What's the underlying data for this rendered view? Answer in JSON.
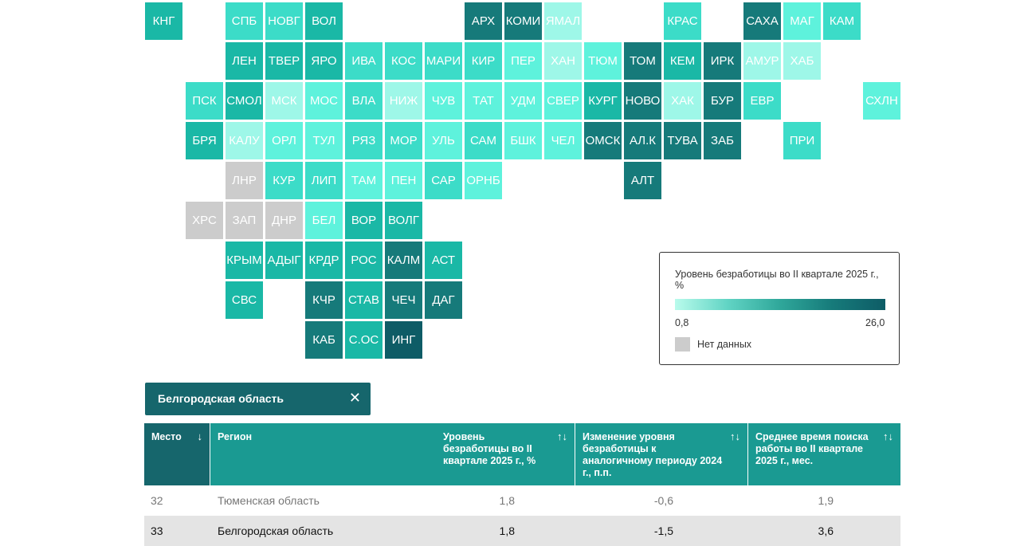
{
  "colors": {
    "teal_darkest": "#0e5c66",
    "teal_dark": "#167a7a",
    "teal_mid": "#1ab8a6",
    "teal_light": "#3cdcc8",
    "teal_lighter": "#5ef2dc",
    "teal_lightest": "#9ef7e8",
    "no_data": "#cccccc",
    "header_first": "#16666c",
    "header_rest": "#1a9a92"
  },
  "map": {
    "tiles": [
      {
        "label": "КНГ",
        "color": "#1ab8a6"
      },
      {
        "label": "СПБ",
        "color": "#3cdcc8"
      },
      {
        "label": "НОВГ",
        "color": "#3cdcc8"
      },
      {
        "label": "ВОЛ",
        "color": "#1ab8a6"
      },
      {
        "label": "АРХ",
        "color": "#167a7a"
      },
      {
        "label": "КОМИ",
        "color": "#167a7a"
      },
      {
        "label": "ЯМАЛ",
        "color": "#9ef7e8"
      },
      {
        "label": "КРАС",
        "color": "#3cdcc8"
      },
      {
        "label": "САХА",
        "color": "#167a7a"
      },
      {
        "label": "МАГ",
        "color": "#5ef2dc"
      },
      {
        "label": "КАМ",
        "color": "#3cdcc8"
      },
      {
        "label": "ЛЕН",
        "color": "#1ab8a6"
      },
      {
        "label": "ТВЕР",
        "color": "#1ab8a6"
      },
      {
        "label": "ЯРО",
        "color": "#1ab8a6"
      },
      {
        "label": "ИВА",
        "color": "#3cdcc8"
      },
      {
        "label": "КОС",
        "color": "#3cdcc8"
      },
      {
        "label": "МАРИ",
        "color": "#3cdcc8"
      },
      {
        "label": "КИР",
        "color": "#3cdcc8"
      },
      {
        "label": "ПЕР",
        "color": "#5ef2dc"
      },
      {
        "label": "ХАН",
        "color": "#9ef7e8"
      },
      {
        "label": "ТЮМ",
        "color": "#5ef2dc"
      },
      {
        "label": "ТОМ",
        "color": "#167a7a"
      },
      {
        "label": "КЕМ",
        "color": "#1ab8a6"
      },
      {
        "label": "ИРК",
        "color": "#167a7a"
      },
      {
        "label": "АМУР",
        "color": "#9ef7e8"
      },
      {
        "label": "ХАБ",
        "color": "#9ef7e8"
      },
      {
        "label": "ПСК",
        "color": "#3cdcc8"
      },
      {
        "label": "СМОЛ",
        "color": "#1ab8a6"
      },
      {
        "label": "МСК",
        "color": "#9ef7e8"
      },
      {
        "label": "МОС",
        "color": "#5ef2dc"
      },
      {
        "label": "ВЛА",
        "color": "#3cdcc8"
      },
      {
        "label": "НИЖ",
        "color": "#9ef7e8"
      },
      {
        "label": "ЧУВ",
        "color": "#5ef2dc"
      },
      {
        "label": "ТАТ",
        "color": "#5ef2dc"
      },
      {
        "label": "УДМ",
        "color": "#5ef2dc"
      },
      {
        "label": "СВЕР",
        "color": "#5ef2dc"
      },
      {
        "label": "КУРГ",
        "color": "#1ab8a6"
      },
      {
        "label": "НОВО",
        "color": "#167a7a"
      },
      {
        "label": "ХАК",
        "color": "#9ef7e8"
      },
      {
        "label": "БУР",
        "color": "#167a7a"
      },
      {
        "label": "ЕВР",
        "color": "#3cdcc8"
      },
      {
        "label": "СХЛН",
        "color": "#5ef2dc"
      },
      {
        "label": "БРЯ",
        "color": "#1ab8a6"
      },
      {
        "label": "КАЛУ",
        "color": "#9ef7e8"
      },
      {
        "label": "ОРЛ",
        "color": "#5ef2dc"
      },
      {
        "label": "ТУЛ",
        "color": "#5ef2dc"
      },
      {
        "label": "РЯЗ",
        "color": "#3cdcc8"
      },
      {
        "label": "МОР",
        "color": "#3cdcc8"
      },
      {
        "label": "УЛЬ",
        "color": "#5ef2dc"
      },
      {
        "label": "САМ",
        "color": "#3cdcc8"
      },
      {
        "label": "БШК",
        "color": "#5ef2dc"
      },
      {
        "label": "ЧЕЛ",
        "color": "#5ef2dc"
      },
      {
        "label": "ОМСК",
        "color": "#167a7a"
      },
      {
        "label": "АЛ.К",
        "color": "#167a7a"
      },
      {
        "label": "ТУВА",
        "color": "#167a7a"
      },
      {
        "label": "ЗАБ",
        "color": "#167a7a"
      },
      {
        "label": "ПРИ",
        "color": "#3cdcc8"
      },
      {
        "label": "ЛНР",
        "color": "#cccccc"
      },
      {
        "label": "КУР",
        "color": "#3cdcc8"
      },
      {
        "label": "ЛИП",
        "color": "#3cdcc8"
      },
      {
        "label": "ТАМ",
        "color": "#5ef2dc"
      },
      {
        "label": "ПЕН",
        "color": "#5ef2dc"
      },
      {
        "label": "САР",
        "color": "#3cdcc8"
      },
      {
        "label": "ОРНБ",
        "color": "#5ef2dc"
      },
      {
        "label": "АЛТ",
        "color": "#167a7a"
      },
      {
        "label": "ХРС",
        "color": "#cccccc"
      },
      {
        "label": "ЗАП",
        "color": "#cccccc"
      },
      {
        "label": "ДНР",
        "color": "#cccccc"
      },
      {
        "label": "БЕЛ",
        "color": "#5ef2dc"
      },
      {
        "label": "ВОР",
        "color": "#1ab8a6"
      },
      {
        "label": "ВОЛГ",
        "color": "#1ab8a6"
      },
      {
        "label": "КРЫМ",
        "color": "#1ab8a6"
      },
      {
        "label": "АДЫГ",
        "color": "#1ab8a6"
      },
      {
        "label": "КРДР",
        "color": "#1ab8a6"
      },
      {
        "label": "РОС",
        "color": "#1ab8a6"
      },
      {
        "label": "КАЛМ",
        "color": "#167a7a"
      },
      {
        "label": "АСТ",
        "color": "#1ab8a6"
      },
      {
        "label": "СВС",
        "color": "#1ab8a6"
      },
      {
        "label": "КЧР",
        "color": "#167a7a"
      },
      {
        "label": "СТАВ",
        "color": "#1ab8a6"
      },
      {
        "label": "ЧЕЧ",
        "color": "#167a7a"
      },
      {
        "label": "ДАГ",
        "color": "#167a7a"
      },
      {
        "label": "КАБ",
        "color": "#167a7a"
      },
      {
        "label": "С.ОС",
        "color": "#1ab8a6"
      },
      {
        "label": "ИНГ",
        "color": "#0e5c66"
      }
    ]
  },
  "legend": {
    "title": "Уровень безработицы во II квартале 2025 г., %",
    "min": "0,8",
    "max": "26,0",
    "no_data": "Нет данных"
  },
  "selection": {
    "label": "Белгородская область",
    "close_icon": "close-icon"
  },
  "table": {
    "sort_icon": "↑↓",
    "place_sort_icon": "↓",
    "headers": {
      "place": "Место",
      "region": "Регион",
      "rate": "Уровень безработицы во II квартале 2025 г., %",
      "change": "Изменение уровня безработицы к аналогичному периоду 2024 г., п.п.",
      "search_time": "Среднее время поиска работы во II квартале 2025 г., мес."
    },
    "rows": [
      {
        "place": "32",
        "region": "Тюменская область",
        "rate": "1,8",
        "change": "-0,6",
        "search_time": "1,9"
      },
      {
        "place": "33",
        "region": "Белгородская область",
        "rate": "1,8",
        "change": "-1,5",
        "search_time": "3,6"
      }
    ]
  }
}
